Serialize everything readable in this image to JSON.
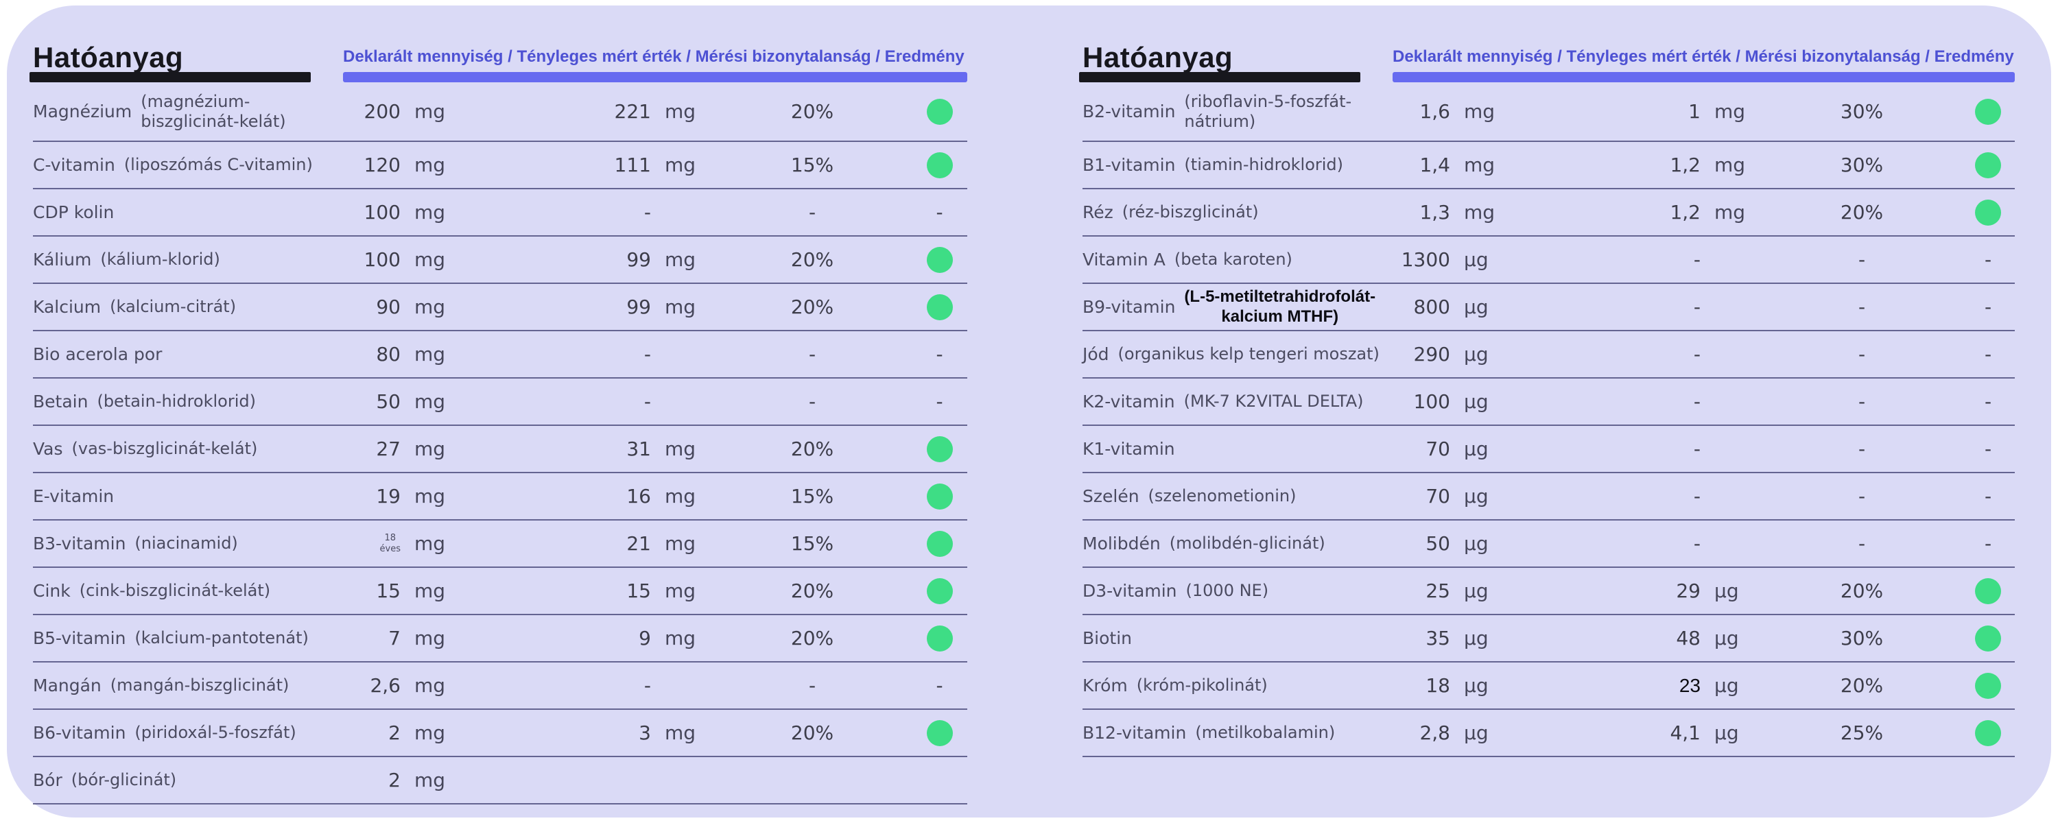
{
  "colors": {
    "page_background": "#ffffff",
    "panel_background": "#dadaf6",
    "accent_purple_bar": "#666af0",
    "header_text_purple": "#4d51d3",
    "title_black": "#17171d",
    "label_grey": "#4b4b60",
    "value_grey": "#3d3d4a",
    "pass_dot_green": "#3edd85",
    "divider": "#46467899"
  },
  "tables": [
    {
      "title": "Hatóanyag",
      "columns_header": "Deklarált mennyiség / Tényleges mért érték / Mérési bizonytalanság / Eredmény",
      "rows": [
        {
          "name": "Magnézium",
          "sub": "(magnézium-\nbiszglicinát-kelát)",
          "declared": "200",
          "declared_unit": "mg",
          "measured": "221",
          "measured_unit": "mg",
          "uncertainty": "20%",
          "result": "pass"
        },
        {
          "name": "C-vitamin",
          "sub": "(liposzómás C-vitamin)",
          "declared": "120",
          "declared_unit": "mg",
          "measured": "111",
          "measured_unit": "mg",
          "uncertainty": "15%",
          "result": "pass"
        },
        {
          "name": "CDP kolin",
          "sub": "",
          "declared": "100",
          "declared_unit": "mg",
          "measured": "-",
          "measured_unit": "",
          "uncertainty": "-",
          "result": "dash"
        },
        {
          "name": "Kálium",
          "sub": "(kálium-klorid)",
          "declared": "100",
          "declared_unit": "mg",
          "measured": "99",
          "measured_unit": "mg",
          "uncertainty": "20%",
          "result": "pass"
        },
        {
          "name": "Kalcium",
          "sub": "(kalcium-citrát)",
          "declared": "90",
          "declared_unit": "mg",
          "measured": "99",
          "measured_unit": "mg",
          "uncertainty": "20%",
          "result": "pass"
        },
        {
          "name": "Bio acerola por",
          "sub": "",
          "declared": "80",
          "declared_unit": "mg",
          "measured": "-",
          "measured_unit": "",
          "uncertainty": "-",
          "result": "dash"
        },
        {
          "name": "Betain",
          "sub": "(betain-hidroklorid)",
          "declared": "50",
          "declared_unit": "mg",
          "measured": "-",
          "measured_unit": "",
          "uncertainty": "-",
          "result": "dash"
        },
        {
          "name": "Vas",
          "sub": "(vas-biszglicinát-kelát)",
          "declared": "27",
          "declared_unit": "mg",
          "measured": "31",
          "measured_unit": "mg",
          "uncertainty": "20%",
          "result": "pass"
        },
        {
          "name": "E-vitamin",
          "sub": "",
          "declared": "19",
          "declared_unit": "mg",
          "measured": "16",
          "measured_unit": "mg",
          "uncertainty": "15%",
          "result": "pass"
        },
        {
          "name": "B3-vitamin",
          "sub": "(niacinamid)",
          "declared": "",
          "declared_stack": {
            "top": "18",
            "bottom": "éves"
          },
          "declared_unit": "mg",
          "measured": "21",
          "measured_unit": "mg",
          "uncertainty": "15%",
          "result": "pass"
        },
        {
          "name": "Cink",
          "sub": "(cink-biszglicinát-kelát)",
          "declared": "15",
          "declared_unit": "mg",
          "measured": "15",
          "measured_unit": "mg",
          "uncertainty": "20%",
          "result": "pass"
        },
        {
          "name": "B5-vitamin",
          "sub": "(kalcium-pantotenát)",
          "declared": "7",
          "declared_unit": "mg",
          "measured": "9",
          "measured_unit": "mg",
          "uncertainty": "20%",
          "result": "pass"
        },
        {
          "name": "Mangán",
          "sub": "(mangán-biszglicinát)",
          "declared": "2,6",
          "declared_unit": "mg",
          "measured": "-",
          "measured_unit": "",
          "uncertainty": "-",
          "result": "dash"
        },
        {
          "name": "B6-vitamin",
          "sub": "(piridoxál-5-foszfát)",
          "declared": "2",
          "declared_unit": "mg",
          "measured": "3",
          "measured_unit": "mg",
          "uncertainty": "20%",
          "result": "pass"
        },
        {
          "name": "Bór",
          "sub": "(bór-glicinát)",
          "declared": "2",
          "declared_unit": "mg",
          "measured": "",
          "measured_unit": "",
          "uncertainty": "",
          "result": "none"
        }
      ]
    },
    {
      "title": "Hatóanyag",
      "columns_header": "Deklarált mennyiség / Tényleges mért érték / Mérési bizonytalanság / Eredmény",
      "rows": [
        {
          "name": "B2-vitamin",
          "sub": "(riboflavin-5-foszfát-\nnátrium)",
          "declared": "1,6",
          "declared_unit": "mg",
          "measured": "1",
          "measured_unit": "mg",
          "uncertainty": "30%",
          "result": "pass"
        },
        {
          "name": "B1-vitamin",
          "sub": "(tiamin-hidroklorid)",
          "declared": "1,4",
          "declared_unit": "mg",
          "measured": "1,2",
          "measured_unit": "mg",
          "uncertainty": "30%",
          "result": "pass"
        },
        {
          "name": "Réz",
          "sub": "(réz-biszglicinát)",
          "declared": "1,3",
          "declared_unit": "mg",
          "measured": "1,2",
          "measured_unit": "mg",
          "uncertainty": "20%",
          "result": "pass"
        },
        {
          "name": "Vitamin A",
          "sub": "(beta karoten)",
          "declared": "1300",
          "declared_unit": "µg",
          "measured": "-",
          "measured_unit": "",
          "uncertainty": "-",
          "result": "dash"
        },
        {
          "name": "B9-vitamin",
          "sub": "(L-5-metiltetrahidrofolát-\nkalcium MTHF)",
          "sub_style": "dark",
          "declared": "800",
          "declared_unit": "µg",
          "measured": "-",
          "measured_unit": "",
          "uncertainty": "-",
          "result": "dash"
        },
        {
          "name": "Jód",
          "sub": "(organikus kelp tengeri moszat)",
          "declared": "290",
          "declared_unit": "µg",
          "measured": "-",
          "measured_unit": "",
          "uncertainty": "-",
          "result": "dash"
        },
        {
          "name": "K2-vitamin",
          "sub": "(MK-7 K2VITAL DELTA)",
          "declared": "100",
          "declared_unit": "µg",
          "measured": "-",
          "measured_unit": "",
          "uncertainty": "-",
          "result": "dash"
        },
        {
          "name": "K1-vitamin",
          "sub": "",
          "declared": "70",
          "declared_unit": "µg",
          "measured": "-",
          "measured_unit": "",
          "uncertainty": "-",
          "result": "dash"
        },
        {
          "name": "Szelén",
          "sub": "(szelenometionin)",
          "declared": "70",
          "declared_unit": "µg",
          "measured": "-",
          "measured_unit": "",
          "uncertainty": "-",
          "result": "dash"
        },
        {
          "name": "Molibdén",
          "sub": "(molibdén-glicinát)",
          "declared": "50",
          "declared_unit": "µg",
          "measured": "-",
          "measured_unit": "",
          "uncertainty": "-",
          "result": "dash"
        },
        {
          "name": "D3-vitamin",
          "sub": "(1000 NE)",
          "declared": "25",
          "declared_unit": "µg",
          "measured": "29",
          "measured_unit": "µg",
          "uncertainty": "20%",
          "result": "pass"
        },
        {
          "name": "Biotin",
          "sub": "",
          "declared": "35",
          "declared_unit": "µg",
          "measured": "48",
          "measured_unit": "µg",
          "uncertainty": "30%",
          "result": "pass"
        },
        {
          "name": "Króm",
          "sub": "(króm-pikolinát)",
          "declared": "18",
          "declared_unit": "µg",
          "measured": "23",
          "measured_style": "dark",
          "measured_unit": "µg",
          "uncertainty": "20%",
          "result": "pass"
        },
        {
          "name": "B12-vitamin",
          "sub": "(metilkobalamin)",
          "declared": "2,8",
          "declared_unit": "µg",
          "measured": "4,1",
          "measured_unit": "µg",
          "uncertainty": "25%",
          "result": "pass"
        }
      ]
    }
  ]
}
